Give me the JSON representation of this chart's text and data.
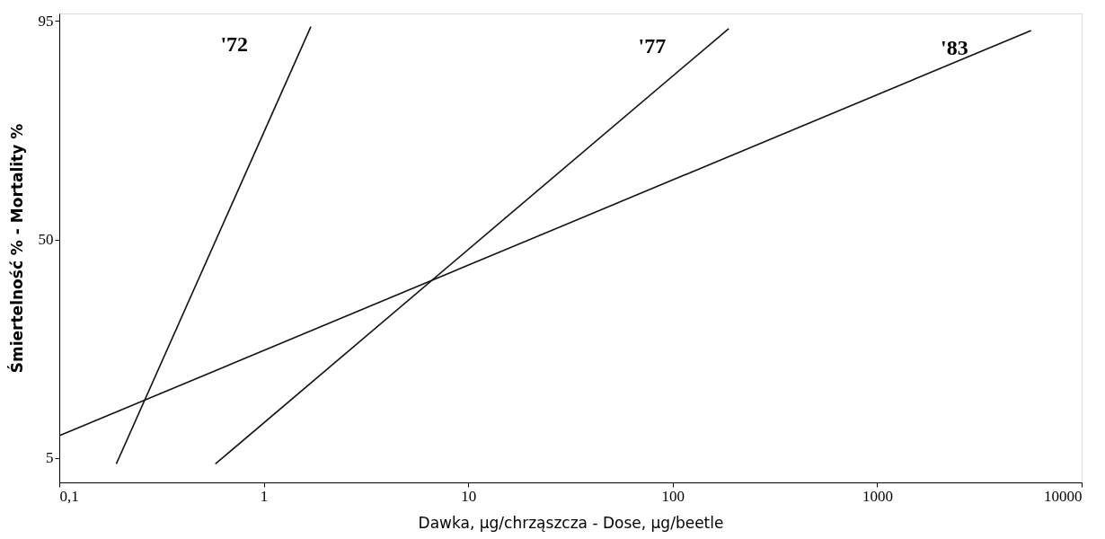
{
  "chart_data": {
    "type": "line",
    "xlabel": "Dawka, µg/chrząszcza - Dose, µg/beetle",
    "ylabel": "Śmiertelność % - Mortality %",
    "log": "x",
    "xlim": [
      0.1,
      10000
    ],
    "xticks": [
      {
        "value": 0.1,
        "label": "0,1"
      },
      1,
      10,
      100,
      1000,
      10000
    ],
    "ylim": [
      0,
      96.5
    ],
    "yticks": [
      5,
      50,
      95
    ],
    "grid": false,
    "legend": false,
    "series": [
      {
        "name": "'72",
        "color": "#111111",
        "x": [
          0.19,
          1.7
        ],
        "values": [
          3.8,
          93.8
        ]
      },
      {
        "name": "'77",
        "color": "#111111",
        "x": [
          0.58,
          188
        ],
        "values": [
          3.8,
          93.4
        ]
      },
      {
        "name": "'83",
        "color": "#111111",
        "x": [
          0.1,
          5660
        ],
        "values": [
          9.6,
          93
        ]
      }
    ],
    "line_style": "solid"
  }
}
